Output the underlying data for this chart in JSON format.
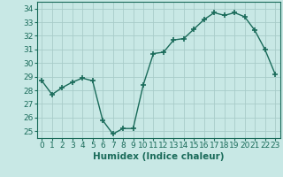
{
  "x": [
    0,
    1,
    2,
    3,
    4,
    5,
    6,
    7,
    8,
    9,
    10,
    11,
    12,
    13,
    14,
    15,
    16,
    17,
    18,
    19,
    20,
    21,
    22,
    23
  ],
  "y": [
    28.7,
    27.7,
    28.2,
    28.6,
    28.9,
    28.7,
    25.8,
    24.8,
    25.2,
    25.2,
    28.4,
    30.7,
    30.8,
    31.7,
    31.8,
    32.5,
    33.2,
    33.7,
    33.5,
    33.7,
    33.4,
    32.4,
    31.0,
    29.2
  ],
  "line_color": "#1a6b5a",
  "bg_color": "#c8e8e5",
  "grid_color": "#a8ccc9",
  "xlabel": "Humidex (Indice chaleur)",
  "ylim": [
    24.5,
    34.5
  ],
  "xlim": [
    -0.5,
    23.5
  ],
  "yticks": [
    25,
    26,
    27,
    28,
    29,
    30,
    31,
    32,
    33,
    34
  ],
  "xticks": [
    0,
    1,
    2,
    3,
    4,
    5,
    6,
    7,
    8,
    9,
    10,
    11,
    12,
    13,
    14,
    15,
    16,
    17,
    18,
    19,
    20,
    21,
    22,
    23
  ],
  "title_color": "#1a6b5a",
  "xlabel_fontsize": 7.5,
  "tick_fontsize": 6.5,
  "marker": "+",
  "markersize": 4,
  "linewidth": 1.0
}
